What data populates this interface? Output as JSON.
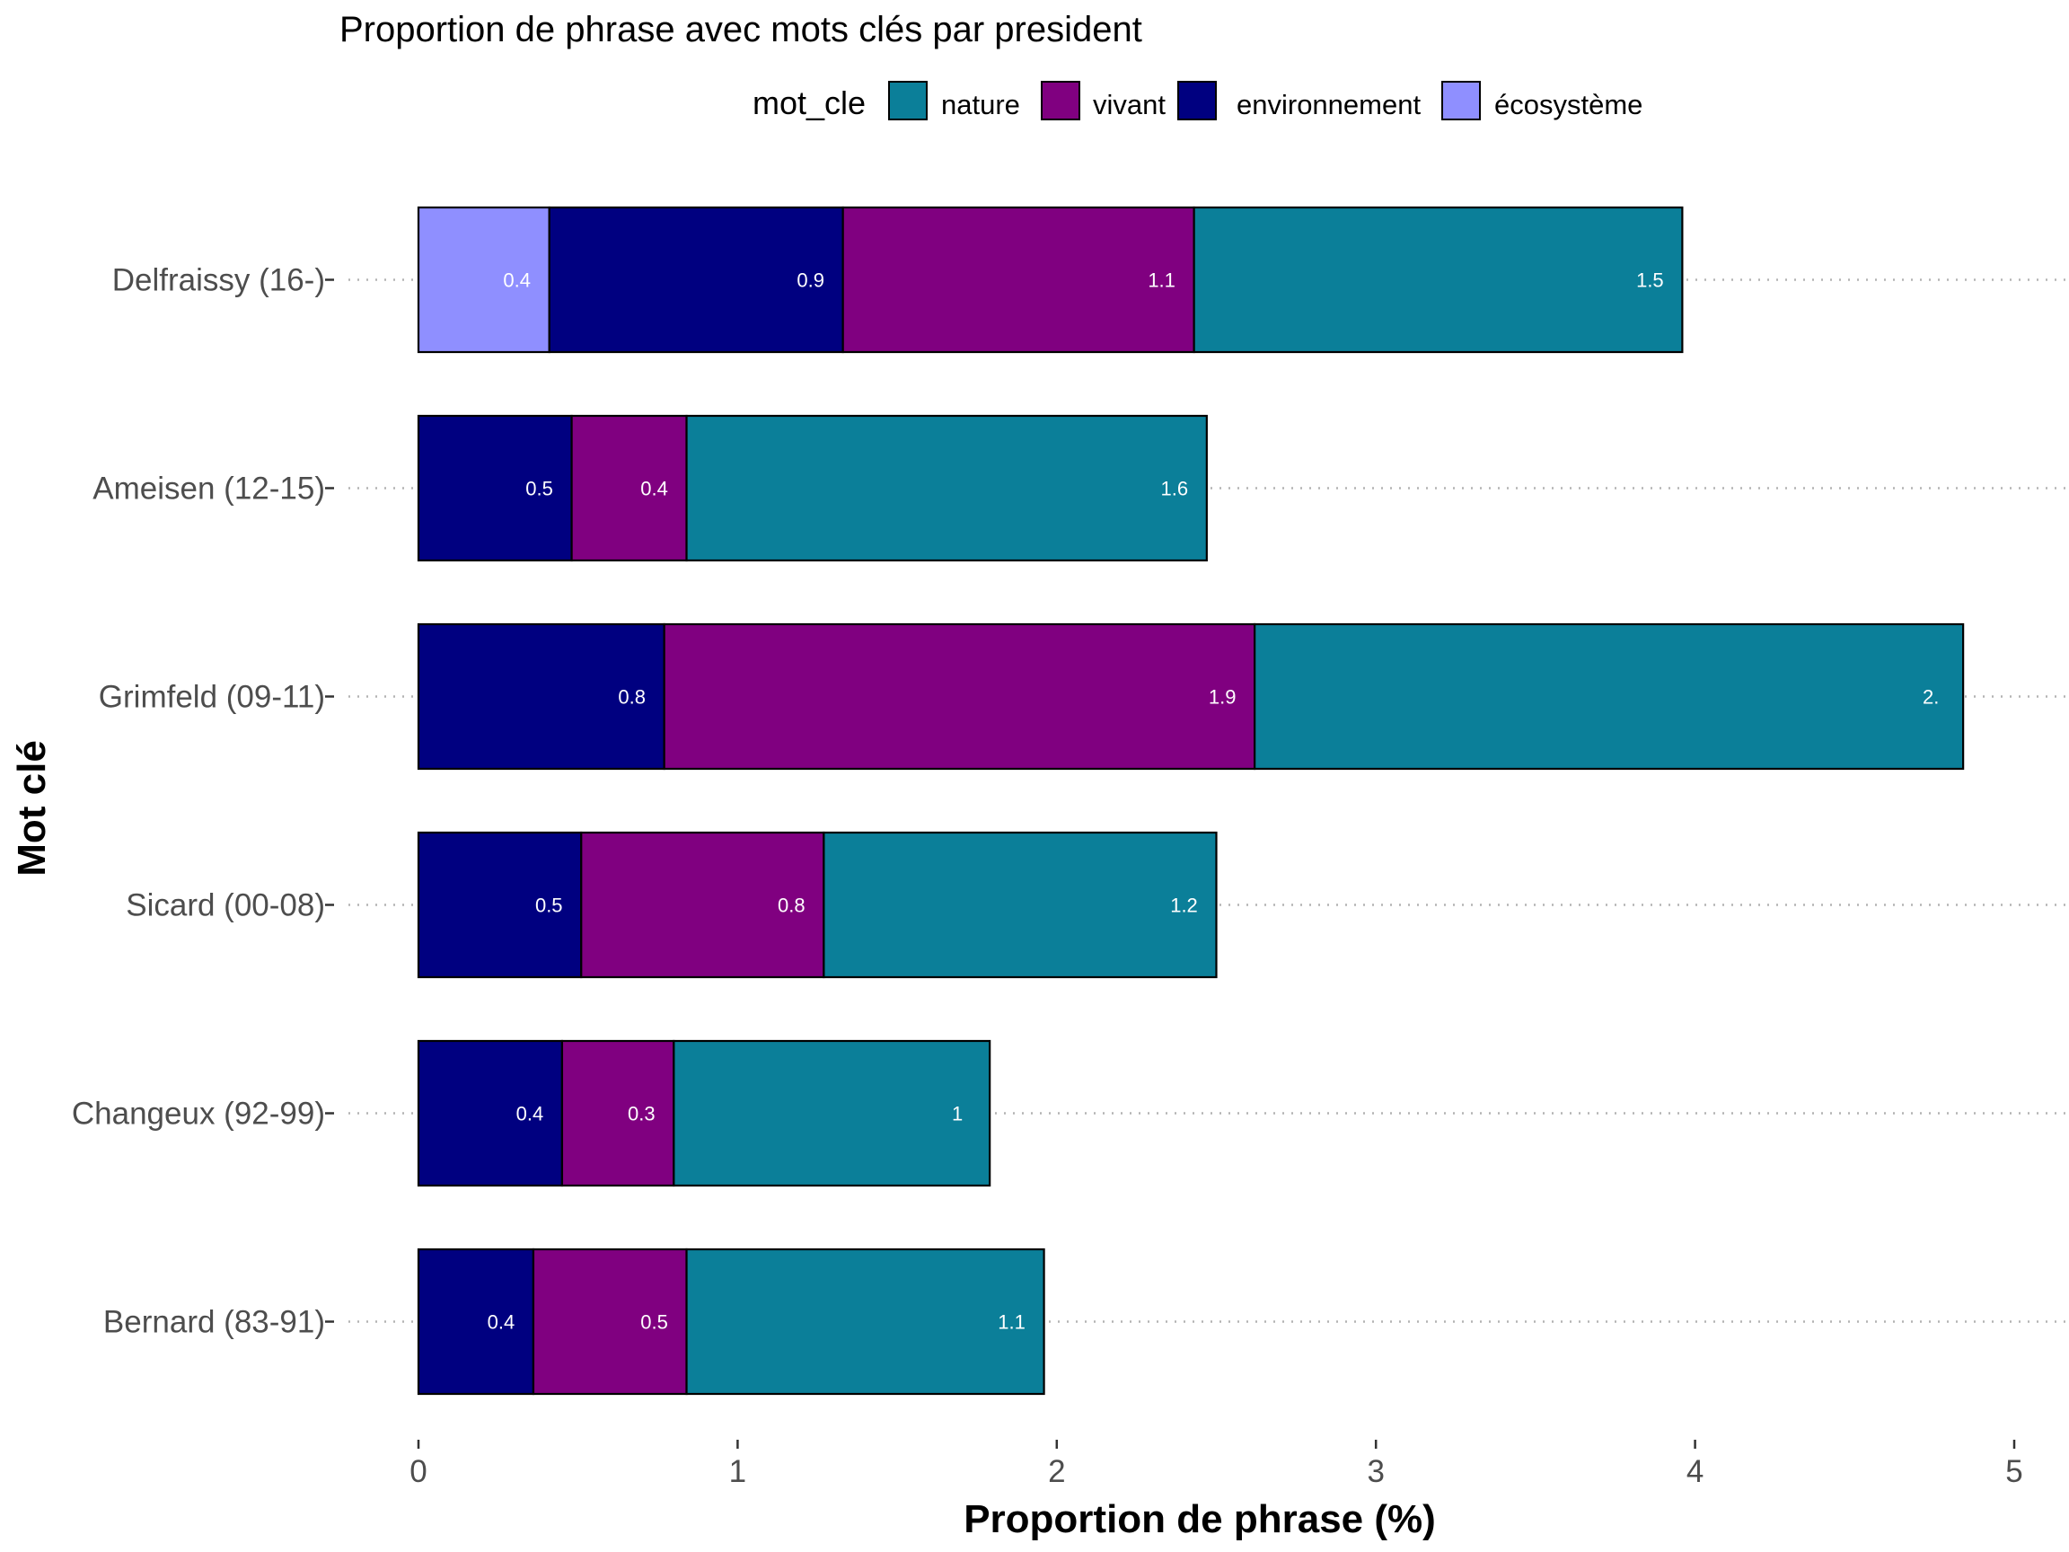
{
  "chart_data": {
    "type": "bar",
    "orientation": "horizontal",
    "stacked": true,
    "title": "Proportion de phrase avec mots clés par president",
    "xlabel": "Proportion de phrase (%)",
    "ylabel": "Mot clé",
    "xlim": [
      0,
      5
    ],
    "xticks": [
      "0",
      "1",
      "2",
      "3",
      "4",
      "5"
    ],
    "grid": "horizontal dotted lines at categories",
    "legend": {
      "position": "top",
      "title": "mot_cle",
      "entries": [
        {
          "key": "nature",
          "label": "nature",
          "color": "#0b7f99"
        },
        {
          "key": "vivant",
          "label": "vivant",
          "color": "#800080"
        },
        {
          "key": "environnement",
          "label": "environnement",
          "color": "#000080"
        },
        {
          "key": "ecosysteme",
          "label": "écosystème",
          "color": "#8f8fff"
        }
      ]
    },
    "stack_order": [
      "ecosysteme",
      "environnement",
      "vivant",
      "nature"
    ],
    "categories": [
      "Delfraissy (16-)",
      "Ameisen (12-15)",
      "Grimfeld (09-11)",
      "Sicard (00-08)",
      "Changeux (92-99)",
      "Bernard (83-91)"
    ],
    "series": [
      {
        "key": "ecosysteme",
        "values": [
          0.41,
          0,
          0,
          0,
          0,
          0
        ],
        "labels": [
          "0.4",
          "",
          "",
          "",
          "",
          ""
        ]
      },
      {
        "key": "environnement",
        "values": [
          0.92,
          0.48,
          0.77,
          0.51,
          0.45,
          0.36
        ],
        "labels": [
          "0.9",
          "0.5",
          "0.8",
          "0.5",
          "0.4",
          "0.4"
        ]
      },
      {
        "key": "vivant",
        "values": [
          1.1,
          0.36,
          1.85,
          0.76,
          0.35,
          0.48
        ],
        "labels": [
          "1.1",
          "0.4",
          "1.9",
          "0.8",
          "0.3",
          "0.5"
        ]
      },
      {
        "key": "nature",
        "values": [
          1.53,
          1.63,
          2.22,
          1.23,
          0.99,
          1.12
        ],
        "labels": [
          "1.5",
          "1.6",
          "2.",
          "1.2",
          "1",
          "1.1"
        ]
      }
    ]
  }
}
